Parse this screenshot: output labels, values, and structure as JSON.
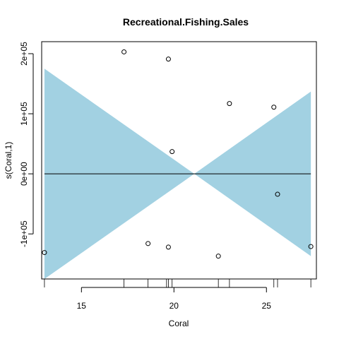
{
  "chart_data": {
    "type": "scatter",
    "title": "Recreational.Fishing.Sales",
    "xlabel": "Coral",
    "ylabel": "s(Coral,1)",
    "xlim": [
      12.85,
      27.7
    ],
    "ylim": [
      -175000,
      220000
    ],
    "x_ticks": [
      15,
      20,
      25
    ],
    "x_tick_labels": [
      "15",
      "20",
      "25"
    ],
    "y_ticks": [
      -100000,
      0,
      100000,
      200000
    ],
    "y_tick_labels": [
      "-1e+05",
      "0e+00",
      "1e+05",
      "2e+05"
    ],
    "fit_line": {
      "x": [
        13.0,
        27.4
      ],
      "y": [
        0,
        0
      ]
    },
    "confidence_band": {
      "x": [
        13.0,
        21.1,
        27.4
      ],
      "upper": [
        175000,
        0,
        137000
      ],
      "lower": [
        -175000,
        0,
        -137000
      ],
      "color": "#a2d1e2"
    },
    "points": [
      {
        "x": 13.0,
        "y": -131000
      },
      {
        "x": 17.3,
        "y": 203000
      },
      {
        "x": 18.6,
        "y": -116000
      },
      {
        "x": 19.7,
        "y": 191000
      },
      {
        "x": 19.7,
        "y": -122000
      },
      {
        "x": 19.9,
        "y": 37000
      },
      {
        "x": 22.4,
        "y": -137000
      },
      {
        "x": 23.0,
        "y": 117000
      },
      {
        "x": 25.4,
        "y": 111000
      },
      {
        "x": 25.6,
        "y": -34000
      },
      {
        "x": 27.4,
        "y": -121000
      }
    ],
    "rug": [
      13.0,
      17.3,
      18.6,
      19.6,
      19.7,
      19.9,
      22.4,
      23.0,
      25.4,
      25.6,
      27.4
    ],
    "grid": false,
    "legend": "none"
  }
}
